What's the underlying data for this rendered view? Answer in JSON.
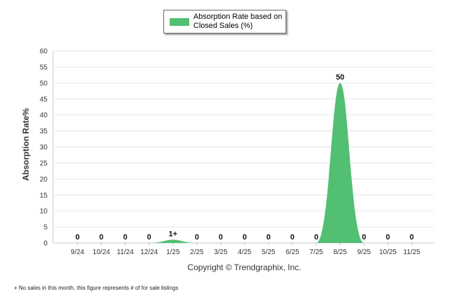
{
  "chart_data": {
    "type": "area",
    "legend": "Absorption Rate based on Closed Sales (%)",
    "ylabel": "Absorption Rate%",
    "categories": [
      "9/24",
      "10/24",
      "11/24",
      "12/24",
      "1/25",
      "2/25",
      "3/25",
      "4/25",
      "5/25",
      "6/25",
      "7/25",
      "8/25",
      "9/25",
      "10/25",
      "11/25"
    ],
    "values": [
      0,
      0,
      0,
      0,
      1,
      0,
      0,
      0,
      0,
      0,
      0,
      50,
      0,
      0,
      0
    ],
    "data_labels": [
      "0",
      "0",
      "0",
      "0",
      "1+",
      "0",
      "0",
      "0",
      "0",
      "0",
      "0",
      "50",
      "0",
      "0",
      "0"
    ],
    "yticks": [
      0,
      5,
      10,
      15,
      20,
      25,
      30,
      35,
      40,
      45,
      50,
      55,
      60
    ],
    "ylim": [
      0,
      60
    ],
    "grid": true,
    "legend_position": "top-center",
    "colors": {
      "series": "#52bf73",
      "grid": "#e6e6e6",
      "axis": "#c8c8c8"
    }
  },
  "copyright": "Copyright © Trendgraphix, Inc.",
  "footnote": "+ No sales in this month, this figure represents # of for sale listings"
}
